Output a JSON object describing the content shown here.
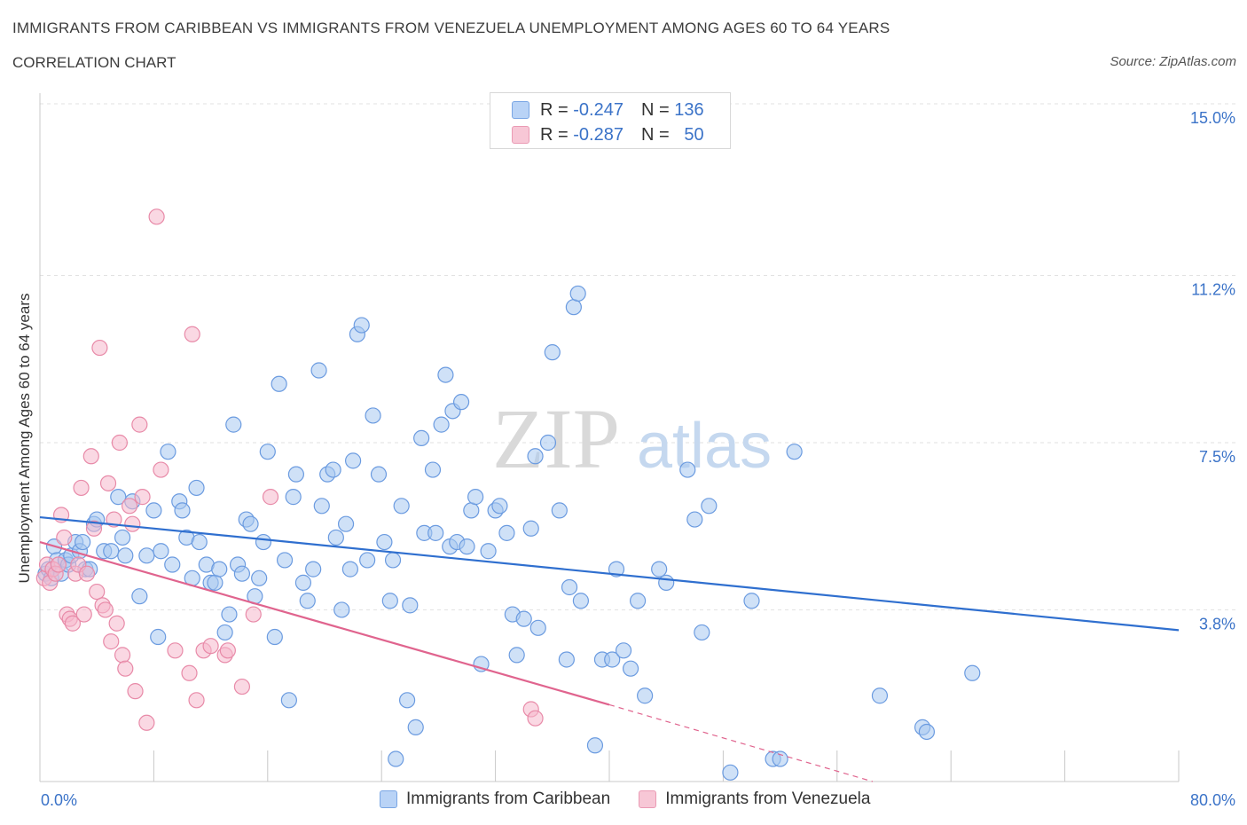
{
  "header": {
    "title": "IMMIGRANTS FROM CARIBBEAN VS IMMIGRANTS FROM VENEZUELA UNEMPLOYMENT AMONG AGES 60 TO 64 YEARS",
    "subtitle": "CORRELATION CHART",
    "source": "Source: ZipAtlas.com"
  },
  "legend": {
    "r_label": "R =",
    "n_label": "N =",
    "caribbean": {
      "r": "-0.247",
      "n": "136"
    },
    "venezuela": {
      "r": "-0.287",
      "n": "50"
    }
  },
  "watermark": {
    "zip": "ZIP",
    "atlas": "atlas"
  },
  "colors": {
    "caribbean_fill": "#a8c8f0",
    "caribbean_stroke": "#6b9be0",
    "caribbean_line": "#2f6fcf",
    "venezuela_fill": "#f5b8cc",
    "venezuela_stroke": "#e88aa8",
    "venezuela_line": "#e0648e",
    "axis_text": "#3b73c8"
  },
  "chart_data": {
    "type": "scatter",
    "title": "IMMIGRANTS FROM CARIBBEAN VS IMMIGRANTS FROM VENEZUELA UNEMPLOYMENT AMONG AGES 60 TO 64 YEARS",
    "xlabel": "",
    "ylabel": "Unemployment Among Ages 60 to 64 years",
    "xlim": [
      0,
      80
    ],
    "ylim": [
      0,
      15
    ],
    "x_tick_labels": [
      "0.0%",
      "80.0%"
    ],
    "y_ticks": [
      3.8,
      7.5,
      11.2,
      15.0
    ],
    "y_tick_labels": [
      "3.8%",
      "7.5%",
      "11.2%",
      "15.0%"
    ],
    "grid": true,
    "legend_position": "top-center",
    "series": [
      {
        "name": "Immigrants from Caribbean",
        "trend": {
          "x": [
            0,
            80
          ],
          "y": [
            5.85,
            3.35
          ],
          "dashed_from": null
        },
        "points": [
          [
            0.4,
            4.6
          ],
          [
            0.6,
            4.7
          ],
          [
            0.8,
            4.5
          ],
          [
            1.0,
            5.2
          ],
          [
            1.2,
            4.9
          ],
          [
            1.5,
            4.6
          ],
          [
            1.8,
            4.9
          ],
          [
            2.0,
            4.8
          ],
          [
            2.2,
            5.0
          ],
          [
            2.5,
            5.3
          ],
          [
            2.8,
            5.1
          ],
          [
            3.0,
            5.3
          ],
          [
            3.2,
            4.7
          ],
          [
            3.5,
            4.7
          ],
          [
            3.8,
            5.7
          ],
          [
            4.0,
            5.8
          ],
          [
            4.5,
            5.1
          ],
          [
            5.0,
            5.1
          ],
          [
            5.5,
            6.3
          ],
          [
            5.8,
            5.4
          ],
          [
            6.0,
            5.0
          ],
          [
            6.5,
            6.2
          ],
          [
            7.0,
            4.1
          ],
          [
            7.5,
            5.0
          ],
          [
            8.0,
            6.0
          ],
          [
            8.3,
            3.2
          ],
          [
            8.5,
            5.1
          ],
          [
            9.0,
            7.3
          ],
          [
            9.3,
            4.8
          ],
          [
            9.8,
            6.2
          ],
          [
            10.0,
            6.0
          ],
          [
            10.3,
            5.4
          ],
          [
            10.7,
            4.5
          ],
          [
            11.0,
            6.5
          ],
          [
            11.2,
            5.3
          ],
          [
            11.7,
            4.8
          ],
          [
            12.0,
            4.4
          ],
          [
            12.3,
            4.4
          ],
          [
            12.6,
            4.7
          ],
          [
            13.0,
            3.3
          ],
          [
            13.3,
            3.7
          ],
          [
            13.6,
            7.9
          ],
          [
            13.9,
            4.8
          ],
          [
            14.2,
            4.6
          ],
          [
            14.5,
            5.8
          ],
          [
            14.8,
            5.7
          ],
          [
            15.1,
            4.1
          ],
          [
            15.4,
            4.5
          ],
          [
            15.7,
            5.3
          ],
          [
            16.0,
            7.3
          ],
          [
            16.5,
            3.2
          ],
          [
            16.8,
            8.8
          ],
          [
            17.2,
            4.9
          ],
          [
            17.5,
            1.8
          ],
          [
            17.8,
            6.3
          ],
          [
            18.0,
            6.8
          ],
          [
            18.5,
            4.4
          ],
          [
            18.8,
            4.0
          ],
          [
            19.2,
            4.7
          ],
          [
            19.6,
            9.1
          ],
          [
            19.8,
            6.1
          ],
          [
            20.2,
            6.8
          ],
          [
            20.6,
            6.9
          ],
          [
            20.8,
            5.4
          ],
          [
            21.2,
            3.8
          ],
          [
            21.5,
            5.7
          ],
          [
            21.8,
            4.7
          ],
          [
            22.0,
            7.1
          ],
          [
            22.3,
            9.9
          ],
          [
            22.6,
            10.1
          ],
          [
            23.0,
            4.9
          ],
          [
            23.4,
            8.1
          ],
          [
            23.8,
            6.8
          ],
          [
            24.2,
            5.3
          ],
          [
            24.6,
            4.0
          ],
          [
            24.8,
            4.9
          ],
          [
            25.0,
            0.5
          ],
          [
            25.4,
            6.1
          ],
          [
            25.8,
            1.8
          ],
          [
            26.0,
            3.9
          ],
          [
            26.4,
            1.2
          ],
          [
            26.8,
            7.6
          ],
          [
            27.0,
            5.5
          ],
          [
            27.6,
            6.9
          ],
          [
            27.8,
            5.5
          ],
          [
            28.2,
            7.9
          ],
          [
            28.5,
            9.0
          ],
          [
            28.8,
            5.2
          ],
          [
            29.0,
            8.2
          ],
          [
            29.3,
            5.3
          ],
          [
            29.6,
            8.4
          ],
          [
            30.0,
            5.2
          ],
          [
            30.3,
            6.0
          ],
          [
            30.6,
            6.3
          ],
          [
            31.0,
            2.6
          ],
          [
            31.5,
            5.1
          ],
          [
            32.0,
            6.0
          ],
          [
            32.3,
            6.1
          ],
          [
            32.8,
            5.5
          ],
          [
            33.2,
            3.7
          ],
          [
            33.5,
            2.8
          ],
          [
            34.0,
            3.6
          ],
          [
            34.5,
            5.6
          ],
          [
            34.8,
            7.2
          ],
          [
            35.0,
            3.4
          ],
          [
            35.7,
            7.5
          ],
          [
            36.0,
            9.5
          ],
          [
            36.5,
            6.0
          ],
          [
            37.0,
            2.7
          ],
          [
            37.2,
            4.3
          ],
          [
            37.5,
            10.5
          ],
          [
            37.8,
            10.8
          ],
          [
            38.0,
            4.0
          ],
          [
            39.0,
            0.8
          ],
          [
            39.5,
            2.7
          ],
          [
            40.2,
            2.7
          ],
          [
            40.5,
            4.7
          ],
          [
            41.0,
            2.9
          ],
          [
            41.5,
            2.5
          ],
          [
            42.0,
            4.0
          ],
          [
            42.5,
            1.9
          ],
          [
            43.5,
            4.7
          ],
          [
            44.0,
            4.4
          ],
          [
            45.5,
            6.9
          ],
          [
            46.0,
            5.8
          ],
          [
            46.5,
            3.3
          ],
          [
            47.0,
            6.1
          ],
          [
            48.5,
            0.2
          ],
          [
            50.0,
            4.0
          ],
          [
            51.5,
            0.5
          ],
          [
            52.0,
            0.5
          ],
          [
            53.0,
            7.3
          ],
          [
            59.0,
            1.9
          ],
          [
            62.0,
            1.2
          ],
          [
            62.3,
            1.1
          ],
          [
            65.5,
            2.4
          ]
        ]
      },
      {
        "name": "Immigrants from Venezuela",
        "trend": {
          "x": [
            0,
            40
          ],
          "y": [
            5.3,
            1.7
          ],
          "dashed_to": {
            "x": 58.5,
            "y": 0.0
          }
        },
        "points": [
          [
            0.3,
            4.5
          ],
          [
            0.5,
            4.8
          ],
          [
            0.7,
            4.4
          ],
          [
            0.9,
            4.7
          ],
          [
            1.1,
            4.6
          ],
          [
            1.3,
            4.8
          ],
          [
            1.5,
            5.9
          ],
          [
            1.7,
            5.4
          ],
          [
            1.9,
            3.7
          ],
          [
            2.1,
            3.6
          ],
          [
            2.3,
            3.5
          ],
          [
            2.5,
            4.6
          ],
          [
            2.7,
            4.8
          ],
          [
            2.9,
            6.5
          ],
          [
            3.1,
            3.7
          ],
          [
            3.3,
            4.6
          ],
          [
            3.6,
            7.2
          ],
          [
            3.8,
            5.6
          ],
          [
            4.0,
            4.2
          ],
          [
            4.2,
            9.6
          ],
          [
            4.4,
            3.9
          ],
          [
            4.6,
            3.8
          ],
          [
            4.8,
            6.6
          ],
          [
            5.0,
            3.1
          ],
          [
            5.2,
            5.8
          ],
          [
            5.4,
            3.5
          ],
          [
            5.6,
            7.5
          ],
          [
            5.8,
            2.8
          ],
          [
            6.0,
            2.5
          ],
          [
            6.3,
            6.1
          ],
          [
            6.5,
            5.7
          ],
          [
            6.7,
            2.0
          ],
          [
            7.0,
            7.9
          ],
          [
            7.2,
            6.3
          ],
          [
            7.5,
            1.3
          ],
          [
            8.2,
            12.5
          ],
          [
            8.5,
            6.9
          ],
          [
            9.5,
            2.9
          ],
          [
            10.5,
            2.4
          ],
          [
            10.7,
            9.9
          ],
          [
            11.0,
            1.8
          ],
          [
            11.5,
            2.9
          ],
          [
            12.0,
            3.0
          ],
          [
            13.0,
            2.8
          ],
          [
            13.2,
            2.9
          ],
          [
            14.2,
            2.1
          ],
          [
            15.0,
            3.7
          ],
          [
            16.2,
            6.3
          ],
          [
            34.5,
            1.6
          ],
          [
            34.8,
            1.4
          ]
        ]
      }
    ]
  },
  "bottom_legend": {
    "caribbean": "Immigrants from Caribbean",
    "venezuela": "Immigrants from Venezuela"
  }
}
